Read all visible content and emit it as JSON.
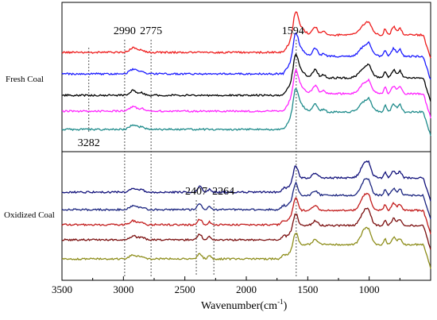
{
  "chart_data": {
    "type": "line",
    "title": "",
    "xlabel": "Wavenumber(cm",
    "xlabel_sup": "-1",
    "xlabel_close": ")",
    "ylabel": "",
    "xlim": [
      3500,
      500
    ],
    "x_reversed": true,
    "x_ticks": [
      3500,
      3000,
      2500,
      2000,
      1500,
      1000
    ],
    "x_tick_labels": [
      "3500",
      "3000",
      "2500",
      "2000",
      "1500",
      "1000"
    ],
    "grid": false,
    "panels": [
      {
        "label": "Fresh Coal",
        "series_colors": [
          "#ee1c1c",
          "#1a1aff",
          "#000000",
          "#ff22ff",
          "#1e8b8b"
        ]
      },
      {
        "label": "Oxidized Coal",
        "series_colors": [
          "#10107a",
          "#1b2580",
          "#c21b1b",
          "#7a0d0d",
          "#8d8d1a"
        ]
      }
    ],
    "reference_lines": [
      {
        "x": 3282,
        "label": "3282",
        "panel": "top"
      },
      {
        "x": 2990,
        "label": "2990",
        "panel": "both"
      },
      {
        "x": 2775,
        "label": "2775",
        "panel": "both"
      },
      {
        "x": 1594,
        "label": "1594",
        "panel": "both"
      },
      {
        "x": 2407,
        "label": "2407",
        "panel": "bottom"
      },
      {
        "x": 2264,
        "label": "2264",
        "panel": "bottom"
      }
    ]
  }
}
